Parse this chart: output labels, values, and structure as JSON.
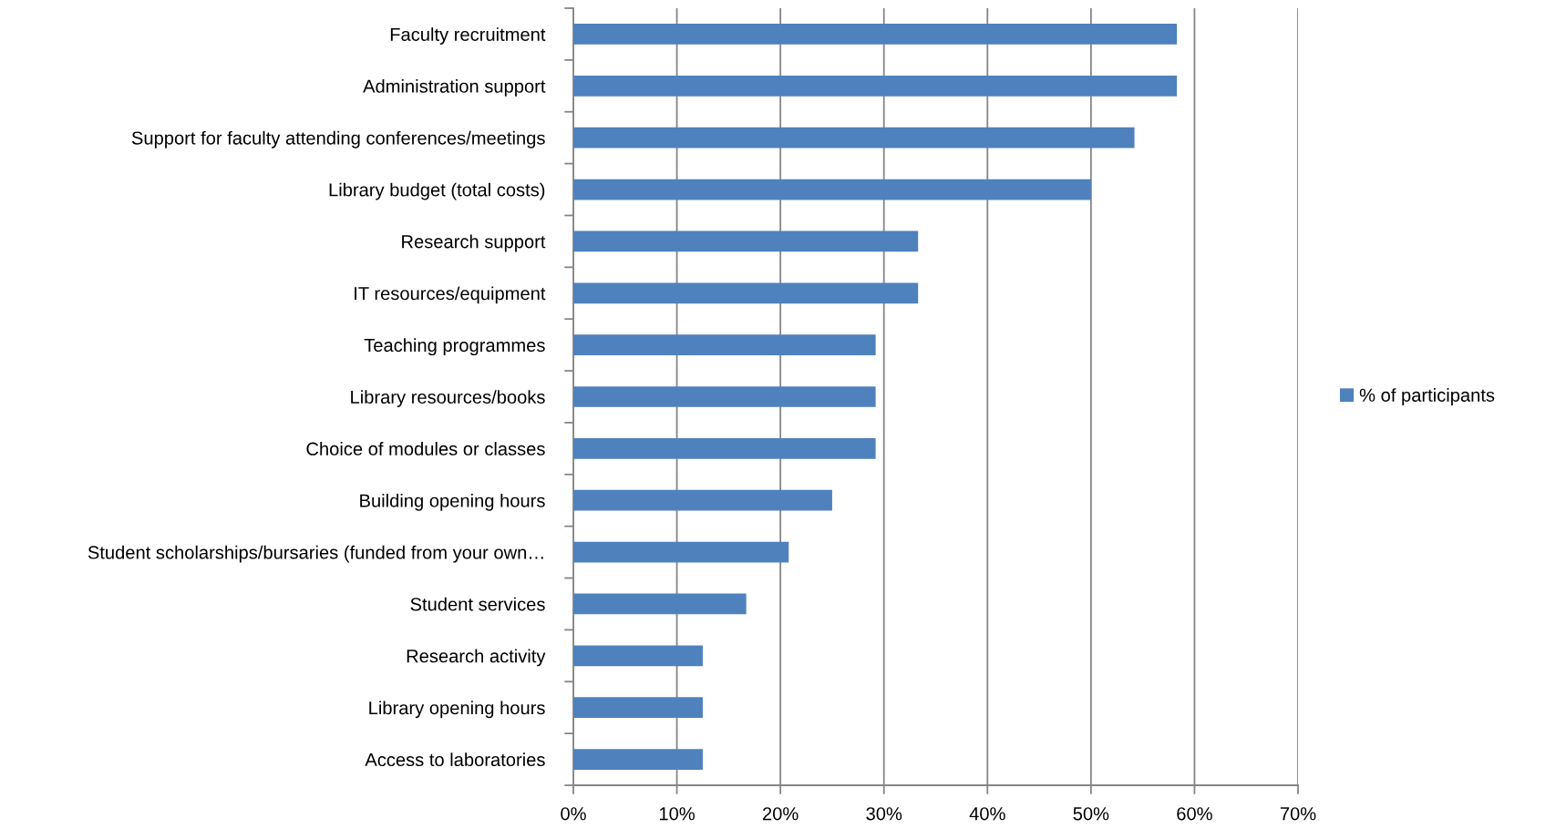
{
  "chart_data": {
    "type": "bar",
    "orientation": "horizontal",
    "categories": [
      "Faculty recruitment",
      "Administration support",
      "Support for faculty attending conferences/meetings",
      "Library budget (total costs)",
      "Research support",
      "IT resources/equipment",
      "Teaching programmes",
      "Library resources/books",
      "Choice of modules or classes",
      "Building opening hours",
      "Student scholarships/bursaries (funded from your own…",
      "Student services",
      "Research activity",
      "Library opening hours",
      "Access to laboratories"
    ],
    "series": [
      {
        "name": "% of participants",
        "color": "#4f81bd",
        "values": [
          58.3,
          58.3,
          54.2,
          50,
          33.3,
          33.3,
          29.2,
          29.2,
          29.2,
          25,
          20.8,
          16.7,
          12.5,
          12.5,
          12.5
        ]
      }
    ],
    "xlim": [
      0,
      70
    ],
    "xticks": [
      {
        "value": 0,
        "label": "0%"
      },
      {
        "value": 10,
        "label": "10%"
      },
      {
        "value": 20,
        "label": "20%"
      },
      {
        "value": 30,
        "label": "30%"
      },
      {
        "value": 40,
        "label": "40%"
      },
      {
        "value": 50,
        "label": "50%"
      },
      {
        "value": 60,
        "label": "60%"
      },
      {
        "value": 70,
        "label": "70%"
      }
    ],
    "grid": "x",
    "legend": "right"
  }
}
